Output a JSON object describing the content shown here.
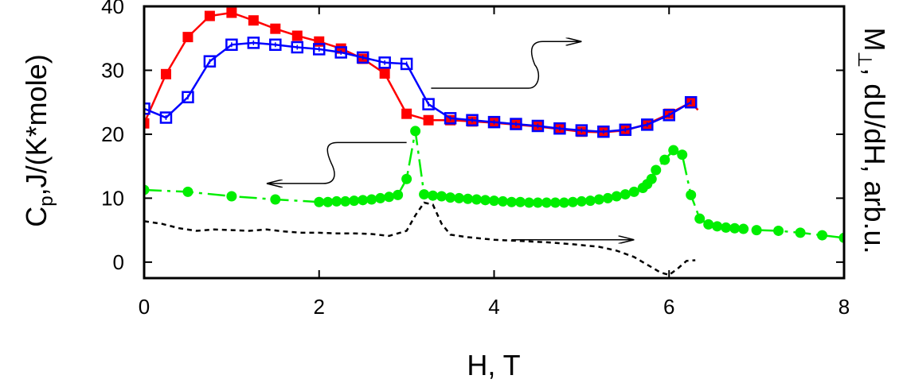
{
  "chart_data": {
    "type": "scatter",
    "title": "",
    "xlabel": "H, T",
    "ylabel": {
      "main": "C",
      "sub": "p",
      "rest": ",J/(K*mole)"
    },
    "ylabel_right": {
      "main": "M",
      "sub": "⊥",
      "rest": ", dU/dH, arb.u."
    },
    "xlim": [
      0,
      8
    ],
    "ylim": [
      -2.5,
      40
    ],
    "x_ticks": [
      0,
      2,
      4,
      6,
      8
    ],
    "x_tick_labels": [
      "0",
      "2",
      "4",
      "6",
      "8"
    ],
    "y_ticks": [
      0,
      10,
      20,
      30,
      40
    ],
    "y_tick_labels": [
      "0",
      "10",
      "20",
      "30",
      "40"
    ],
    "grid": false,
    "colors": {
      "red": "#ff0000",
      "blue": "#0000ff",
      "green": "#00ee00",
      "black": "#000000"
    },
    "series": [
      {
        "style": "red-filled-squares-line",
        "x": [
          0.0,
          0.25,
          0.5,
          0.75,
          1.0,
          1.25,
          1.5,
          1.75,
          2.0,
          2.25,
          2.5,
          2.75,
          3.0,
          3.25,
          3.5,
          3.75,
          4.0,
          4.25,
          4.5,
          4.75,
          5.0,
          5.25,
          5.5,
          5.75,
          6.0,
          6.25
        ],
        "y": [
          21.7,
          29.4,
          35.2,
          38.5,
          39.0,
          37.8,
          36.5,
          35.4,
          34.5,
          33.4,
          31.8,
          29.5,
          23.2,
          22.2,
          22.2,
          22.0,
          21.8,
          21.5,
          21.2,
          20.8,
          20.4,
          20.3,
          20.6,
          21.6,
          23.2,
          25.0
        ],
        "x_line_end": 6.33,
        "y_line_end": 23.8
      },
      {
        "style": "blue-open-squares-line",
        "x": [
          0.0,
          0.25,
          0.5,
          0.75,
          1.0,
          1.25,
          1.5,
          1.75,
          2.0,
          2.25,
          2.5,
          2.75,
          3.0,
          3.25,
          3.5,
          3.75,
          4.0,
          4.25,
          4.5,
          4.75,
          5.0,
          5.25,
          5.5,
          5.75,
          6.0,
          6.25
        ],
        "y": [
          24.0,
          22.6,
          25.8,
          31.4,
          34.0,
          34.3,
          34.0,
          33.6,
          33.3,
          32.8,
          32.0,
          31.2,
          31.0,
          24.7,
          22.5,
          22.2,
          21.9,
          21.6,
          21.3,
          20.9,
          20.6,
          20.4,
          20.7,
          21.5,
          23.0,
          25.0
        ]
      },
      {
        "style": "green-dots-dashdot",
        "x": [
          0.0,
          0.5,
          1.0,
          1.5,
          2.0,
          2.1,
          2.2,
          2.3,
          2.4,
          2.5,
          2.6,
          2.7,
          2.8,
          2.9,
          3.0,
          3.1,
          3.2,
          3.3,
          3.4,
          3.5,
          3.6,
          3.7,
          3.8,
          3.9,
          4.0,
          4.1,
          4.2,
          4.3,
          4.4,
          4.5,
          4.6,
          4.7,
          4.8,
          4.9,
          5.0,
          5.1,
          5.2,
          5.3,
          5.4,
          5.5,
          5.6,
          5.7,
          5.75,
          5.8,
          5.85,
          5.95,
          6.05,
          6.15,
          6.25,
          6.35,
          6.45,
          6.55,
          6.65,
          6.75,
          6.85,
          7.0,
          7.25,
          7.5,
          7.75,
          8.0
        ],
        "y": [
          11.3,
          11.0,
          10.3,
          9.8,
          9.4,
          9.4,
          9.5,
          9.5,
          9.6,
          9.7,
          9.8,
          10.0,
          10.2,
          10.5,
          13.0,
          20.5,
          10.6,
          10.4,
          10.3,
          10.1,
          10.0,
          9.9,
          9.8,
          9.7,
          9.6,
          9.5,
          9.4,
          9.4,
          9.3,
          9.3,
          9.3,
          9.3,
          9.3,
          9.4,
          9.5,
          9.6,
          9.8,
          10.0,
          10.3,
          10.6,
          11.0,
          11.6,
          12.2,
          13.0,
          14.4,
          16.0,
          17.5,
          16.8,
          10.5,
          6.8,
          5.9,
          5.6,
          5.4,
          5.3,
          5.2,
          5.0,
          4.9,
          4.6,
          4.2,
          3.8
        ]
      },
      {
        "style": "black-dashed",
        "x": [
          0.0,
          0.2,
          0.4,
          0.6,
          0.8,
          1.0,
          1.2,
          1.4,
          1.6,
          1.8,
          2.0,
          2.2,
          2.4,
          2.6,
          2.8,
          3.0,
          3.1,
          3.2,
          3.3,
          3.4,
          3.5,
          3.7,
          4.0,
          4.3,
          4.6,
          4.9,
          5.2,
          5.4,
          5.6,
          5.7,
          5.8,
          5.9,
          6.0,
          6.1,
          6.2,
          6.3
        ],
        "y": [
          6.4,
          6.0,
          5.3,
          4.9,
          5.1,
          5.0,
          4.9,
          5.1,
          4.8,
          4.6,
          4.6,
          4.5,
          4.5,
          4.4,
          4.1,
          4.9,
          7.3,
          9.3,
          9.0,
          6.0,
          4.3,
          3.9,
          3.5,
          3.3,
          3.1,
          2.8,
          2.4,
          1.8,
          0.8,
          0.0,
          -0.8,
          -1.6,
          -2.0,
          -1.0,
          0.2,
          0.3
        ]
      }
    ],
    "annotations": [
      {
        "type": "arrow-right",
        "tail_x": 3.28,
        "tail_y": 27.2,
        "head_x": 5.0,
        "head_y": 34.5,
        "meaning": "points to right axis"
      },
      {
        "type": "arrow-left",
        "tail_x": 3.0,
        "tail_y": 18.7,
        "head_x": 1.4,
        "head_y": 12.3,
        "meaning": "points to left axis"
      },
      {
        "type": "arrow-right",
        "tail_x": 4.2,
        "tail_y": 3.5,
        "head_x": 5.6,
        "head_y": 3.5,
        "meaning": "points to right axis"
      }
    ]
  }
}
